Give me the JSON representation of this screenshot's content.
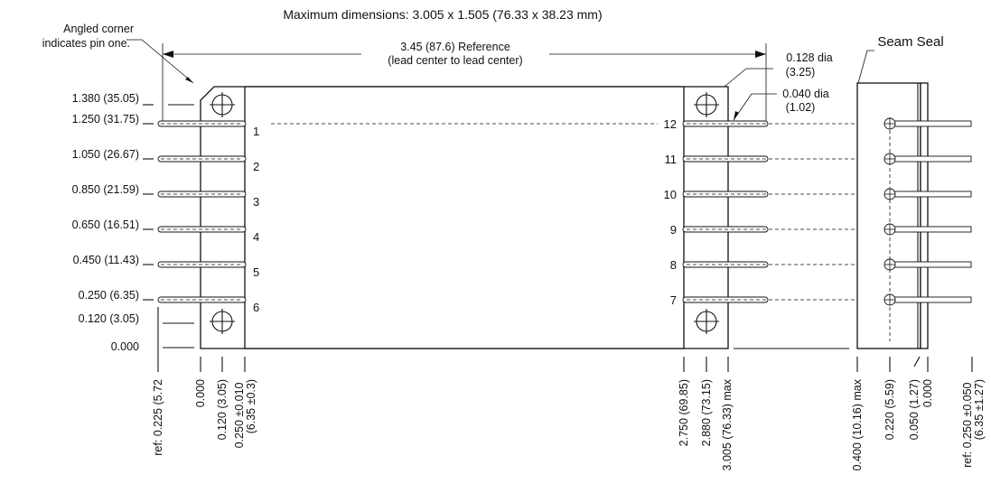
{
  "title": "Maximum dimensions: 3.005 x 1.505 (76.33 x 38.23 mm)",
  "notes": {
    "angled_corner_line1": "Angled corner",
    "angled_corner_line2": "indicates pin one.",
    "reference_line1": "3.45 (87.6) Reference",
    "reference_line2": "(lead center to lead center)",
    "mount_hole_dia_line1": "0.128 dia",
    "mount_hole_dia_line2": "(3.25)",
    "lead_dia_line1": "0.040 dia",
    "lead_dia_line2": "(1.02)",
    "seam_seal": "Seam Seal"
  },
  "left_dimensions": [
    "1.380 (35.05)",
    "1.250 (31.75)",
    "1.050 (26.67)",
    "0.850 (21.59)",
    "0.650 (16.51)",
    "0.450 (11.43)",
    "0.250 (6.35)",
    "0.120 (3.05)",
    "0.000"
  ],
  "pins_left": [
    "1",
    "2",
    "3",
    "4",
    "5",
    "6"
  ],
  "pins_right": [
    "12",
    "11",
    "10",
    "9",
    "8",
    "7"
  ],
  "bottom_dimensions": [
    [
      "ref: 0.225 (5.72"
    ],
    [
      "0.000"
    ],
    [
      "0.120 (3.05)"
    ],
    [
      "0.250 ±0.010",
      "(6.35 ±0.3)"
    ],
    [
      "2.750 (69.85)"
    ],
    [
      "2.880 (73.15)"
    ],
    [
      "3.005 (76.33) max"
    ],
    [
      "0.400 (10.16) max"
    ],
    [
      "0.220 (5.59)"
    ],
    [
      "0.050 (1.27)"
    ],
    [
      "0.000"
    ],
    [
      "ref: 0.250 ±0.050",
      "(6.35 ±1.27)"
    ]
  ]
}
